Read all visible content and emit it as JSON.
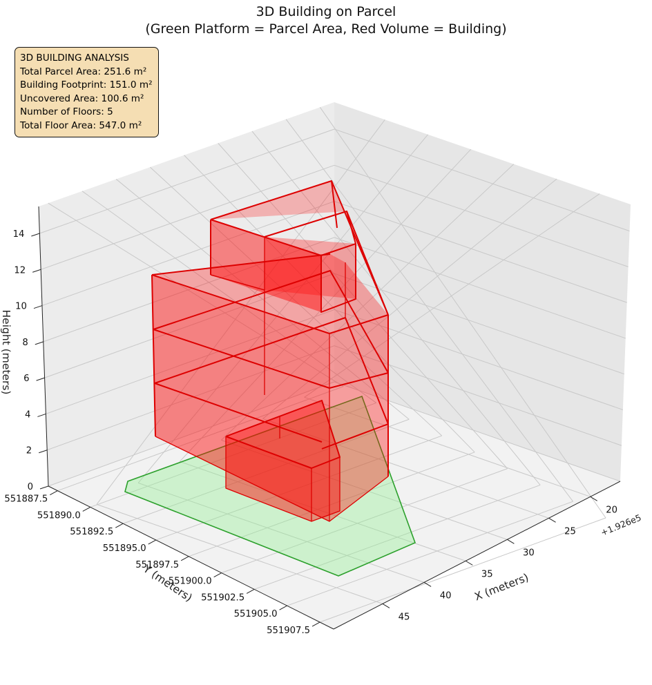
{
  "chart_data": {
    "type": "3d-polygon",
    "title": "3D Building on Parcel",
    "subtitle": "(Green Platform = Parcel Area, Red Volume = Building)",
    "xlabel": "X (meters)",
    "ylabel": "Y (meters)",
    "zlabel": "Height (meters)",
    "x_offset_label": "+1.926e5",
    "x_ticks": [
      "20",
      "25",
      "30",
      "35",
      "40",
      "45"
    ],
    "y_ticks": [
      "551887.5",
      "551890.0",
      "551892.5",
      "551895.0",
      "551897.5",
      "551900.0",
      "551902.5",
      "551905.0",
      "551907.5"
    ],
    "z_ticks": [
      "0",
      "2",
      "4",
      "6",
      "8",
      "10",
      "12",
      "14"
    ],
    "info_box": {
      "lines": [
        "3D BUILDING ANALYSIS",
        "Total Parcel Area: 251.6 m²",
        "Building Footprint: 151.0 m²",
        "Uncovered Area: 100.6 m²",
        "Number of Floors: 5",
        "Total Floor Area: 547.0 m²"
      ]
    },
    "colors": {
      "parcel_edge": "#2ca02c",
      "parcel_fill": "#90ee90",
      "building_edge": "#dd0000",
      "building_fill": "#ff0000"
    }
  }
}
